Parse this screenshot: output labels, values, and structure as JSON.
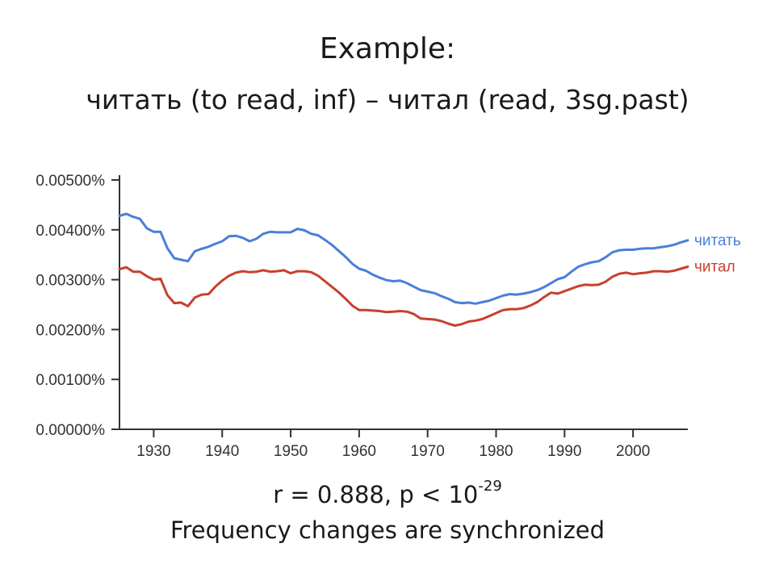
{
  "slide": {
    "title": "Example:",
    "subtitle": "читать (to read, inf) – читал (read, 3sg.past)",
    "stats_prefix": "r = 0.888, p < 10",
    "stats_exponent": "-29",
    "caption": "Frequency changes are synchronized"
  },
  "chart_data": {
    "type": "line",
    "title": "",
    "xlabel": "",
    "ylabel": "",
    "xlim": [
      1925,
      2008
    ],
    "ylim": [
      0.0,
      0.005
    ],
    "grid": false,
    "legend": "right-end-labels",
    "x_ticks": [
      1930,
      1940,
      1950,
      1960,
      1970,
      1980,
      1990,
      2000
    ],
    "x_tick_labels": [
      "1930",
      "1940",
      "1950",
      "1960",
      "1970",
      "1980",
      "1990",
      "2000"
    ],
    "y_ticks": [
      0.0,
      0.001,
      0.002,
      0.003,
      0.004,
      0.005
    ],
    "y_tick_labels": [
      "0.00000%",
      "0.00100%",
      "0.00200%",
      "0.00300%",
      "0.00400%",
      "0.00500%"
    ],
    "x": [
      1925,
      1926,
      1927,
      1928,
      1929,
      1930,
      1931,
      1932,
      1933,
      1934,
      1935,
      1936,
      1937,
      1938,
      1939,
      1940,
      1941,
      1942,
      1943,
      1944,
      1945,
      1946,
      1947,
      1948,
      1949,
      1950,
      1951,
      1952,
      1953,
      1954,
      1955,
      1956,
      1957,
      1958,
      1959,
      1960,
      1961,
      1962,
      1963,
      1964,
      1965,
      1966,
      1967,
      1968,
      1969,
      1970,
      1971,
      1972,
      1973,
      1974,
      1975,
      1976,
      1977,
      1978,
      1979,
      1980,
      1981,
      1982,
      1983,
      1984,
      1985,
      1986,
      1987,
      1988,
      1989,
      1990,
      1991,
      1992,
      1993,
      1994,
      1995,
      1996,
      1997,
      1998,
      1999,
      2000,
      2001,
      2002,
      2003,
      2004,
      2005,
      2006,
      2007,
      2008
    ],
    "series": [
      {
        "name": "читать",
        "color": "#4a7fd8",
        "values": [
          0.00428,
          0.00432,
          0.00426,
          0.00422,
          0.00403,
          0.00396,
          0.00396,
          0.00363,
          0.00343,
          0.0034,
          0.00337,
          0.00357,
          0.00362,
          0.00366,
          0.00372,
          0.00377,
          0.00387,
          0.00388,
          0.00384,
          0.00377,
          0.00382,
          0.00392,
          0.00396,
          0.00395,
          0.00395,
          0.00395,
          0.00402,
          0.00399,
          0.00392,
          0.00389,
          0.0038,
          0.0037,
          0.00358,
          0.00346,
          0.00332,
          0.00322,
          0.00318,
          0.0031,
          0.00304,
          0.00299,
          0.00297,
          0.00298,
          0.00293,
          0.00286,
          0.00279,
          0.00276,
          0.00273,
          0.00267,
          0.00262,
          0.00255,
          0.00253,
          0.00254,
          0.00252,
          0.00255,
          0.00258,
          0.00263,
          0.00268,
          0.00271,
          0.0027,
          0.00272,
          0.00275,
          0.00279,
          0.00285,
          0.00293,
          0.00301,
          0.00305,
          0.00316,
          0.00326,
          0.00331,
          0.00335,
          0.00337,
          0.00345,
          0.00355,
          0.00359,
          0.0036,
          0.0036,
          0.00362,
          0.00363,
          0.00363,
          0.00365,
          0.00367,
          0.0037,
          0.00375,
          0.00379
        ]
      },
      {
        "name": "читал",
        "color": "#c7402f",
        "values": [
          0.00321,
          0.00325,
          0.00316,
          0.00316,
          0.00307,
          0.003,
          0.00302,
          0.00269,
          0.00253,
          0.00254,
          0.00247,
          0.00264,
          0.0027,
          0.00271,
          0.00286,
          0.00298,
          0.00308,
          0.00314,
          0.00317,
          0.00315,
          0.00316,
          0.00319,
          0.00316,
          0.00317,
          0.00319,
          0.00313,
          0.00317,
          0.00317,
          0.00315,
          0.00308,
          0.00297,
          0.00286,
          0.00275,
          0.00262,
          0.00248,
          0.00239,
          0.00239,
          0.00238,
          0.00237,
          0.00235,
          0.00236,
          0.00237,
          0.00236,
          0.00231,
          0.00222,
          0.00221,
          0.0022,
          0.00217,
          0.00212,
          0.00208,
          0.00211,
          0.00216,
          0.00218,
          0.00221,
          0.00227,
          0.00233,
          0.00239,
          0.00241,
          0.00241,
          0.00243,
          0.00248,
          0.00255,
          0.00265,
          0.00274,
          0.00272,
          0.00277,
          0.00282,
          0.00287,
          0.0029,
          0.00289,
          0.0029,
          0.00296,
          0.00306,
          0.00312,
          0.00314,
          0.00311,
          0.00313,
          0.00314,
          0.00317,
          0.00317,
          0.00316,
          0.00318,
          0.00322,
          0.00326
        ]
      }
    ]
  }
}
